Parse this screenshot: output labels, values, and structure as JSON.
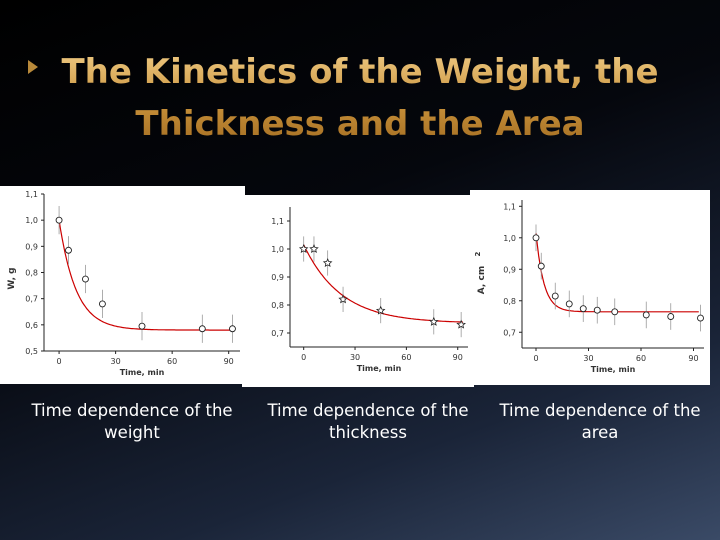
{
  "slide": {
    "title_line1": "The Kinetics of the Weight, the",
    "title_line2": "Thickness and the Area",
    "captions": [
      "Time dependence of the weight",
      "Time dependence of the thickness",
      "Time dependence of the area"
    ]
  },
  "colors": {
    "fit": "#cc0000",
    "axis": "#222222",
    "title": "#d6a85a",
    "caption": "#ffffff",
    "panel_bg": "#ffffff"
  },
  "chart_data": [
    {
      "type": "scatter",
      "xlabel": "Time, min",
      "ylabel": "W, g",
      "xlim": [
        -8,
        96
      ],
      "ylim": [
        0.5,
        1.1
      ],
      "xticks": [
        0,
        30,
        60,
        90
      ],
      "yticks": [
        0.5,
        0.6,
        0.7,
        0.8,
        0.9,
        1.0,
        1.1
      ],
      "ytick_labels": [
        "0,5",
        "0,6",
        "0,7",
        "0,8",
        "0,9",
        "1,0",
        "1,1"
      ],
      "marker": "circle",
      "series": [
        {
          "x": [
            0,
            5,
            14,
            23,
            44,
            76,
            92
          ],
          "y": [
            1.0,
            0.885,
            0.775,
            0.68,
            0.595,
            0.585,
            0.585
          ]
        }
      ],
      "fit": {
        "y0": 0.58,
        "a": 0.42,
        "tau": 9
      }
    },
    {
      "type": "scatter",
      "xlabel": "Time, min",
      "ylabel": "",
      "xlim": [
        -8,
        96
      ],
      "ylim": [
        0.65,
        1.15
      ],
      "xticks": [
        0,
        30,
        60,
        90
      ],
      "yticks": [
        0.7,
        0.8,
        0.9,
        1.0,
        1.1
      ],
      "ytick_labels": [
        "0,7",
        "0,8",
        "0,9",
        "1,0",
        "1,1"
      ],
      "marker": "star",
      "series": [
        {
          "x": [
            0,
            6,
            14,
            23,
            45,
            76,
            92
          ],
          "y": [
            1.0,
            1.0,
            0.95,
            0.82,
            0.78,
            0.74,
            0.73
          ]
        }
      ],
      "fit": {
        "y0": 0.735,
        "a": 0.28,
        "tau": 22
      }
    },
    {
      "type": "scatter",
      "xlabel": "Time, min",
      "ylabel": "A, cm",
      "ylabel_sup": "2",
      "xlim": [
        -8,
        96
      ],
      "ylim": [
        0.65,
        1.12
      ],
      "xticks": [
        0,
        30,
        60,
        90
      ],
      "yticks": [
        0.7,
        0.8,
        0.9,
        1.0,
        1.1
      ],
      "ytick_labels": [
        "0,7",
        "0,8",
        "0,9",
        "1,0",
        "1,1"
      ],
      "marker": "circle",
      "series": [
        {
          "x": [
            0,
            3,
            11,
            19,
            27,
            35,
            45,
            63,
            77,
            94
          ],
          "y": [
            1.0,
            0.91,
            0.815,
            0.79,
            0.775,
            0.77,
            0.765,
            0.755,
            0.75,
            0.745
          ]
        }
      ],
      "fit": {
        "y0": 0.765,
        "a": 0.25,
        "tau": 4.5
      }
    }
  ]
}
